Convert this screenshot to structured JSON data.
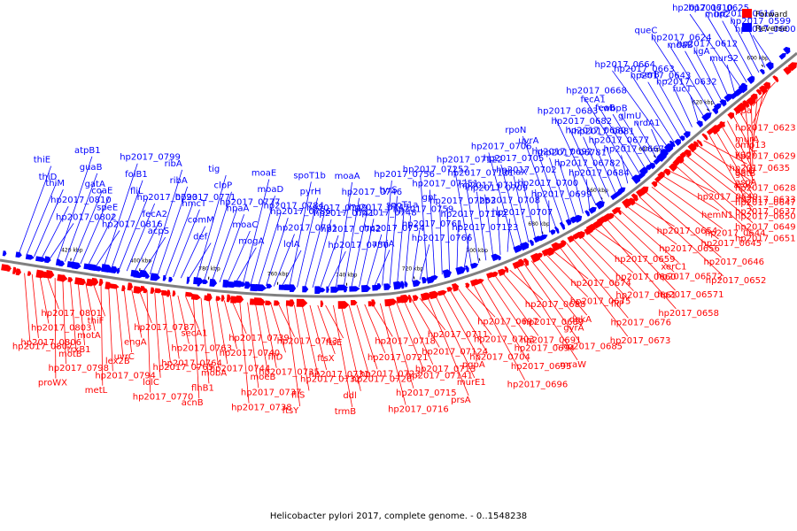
{
  "caption": "Helicobacter pylori 2017, complete genome. - 0..1548238",
  "legend": [
    {
      "label": "Forward",
      "color": "#ff0000"
    },
    {
      "label": "Reverse",
      "color": "#0000ff"
    }
  ],
  "colors": {
    "forward": "#ff0000",
    "reverse": "#0000ff",
    "backbone": "#808080"
  },
  "ticks": [
    "420 kbp",
    "400 kbp",
    "780 kbp",
    "760 kbp",
    "740 kbp",
    "720 kbp",
    "700 kbp",
    "680 kbp",
    "660 kbp",
    "640 kbp",
    "620 kbp",
    "600 kbp"
  ],
  "reverse_labels": [
    "hp2017_0600",
    "hp2017_0599",
    "hp2017_0616",
    "murC",
    "hp2017_0625",
    "hp2017_0610",
    "murS2",
    "ligA",
    "hp2017_0612",
    "mdaB",
    "hp2017_0624",
    "queC",
    "fucT",
    "hp2017_0632",
    "serB",
    "hp2017_0643",
    "hp2017_0663",
    "hp2017_0664",
    "nrdA1",
    "glmU",
    "wbpB",
    "feoB",
    "fecA1",
    "hp2017_0668",
    "hp2017_0667",
    "hp2017_0677",
    "hp2017_0681",
    "hp2017_0680",
    "hp2017_0682",
    "hp2017_0683",
    "hp2017_0684",
    "hp2017_06782",
    "hp2017_06781",
    "hp2017_0692",
    "uvrA",
    "rpoN",
    "hp2017_0699",
    "hp2017_0700",
    "dnaX",
    "hp2017_0702",
    "hp2017_0705",
    "hp2017_0706",
    "hp2017_0707",
    "hp2017_0708",
    "hp2017_0709",
    "hp2017_0710",
    "hp2017_07121",
    "hp2017_07122",
    "hp2017_07123",
    "hp2017_07142",
    "hp2017_07253",
    "gpt",
    "hp2017_07251",
    "hp2017_07252",
    "hp2017_0766",
    "hp2017_0761",
    "hp2017_0759",
    "spoT1a",
    "tyrS",
    "hp2017_0756",
    "amiA",
    "hp2017_0754",
    "hp2017_0748",
    "hp2017_0747",
    "hp2017_0746",
    "moaA",
    "hp2017_0750",
    "hp2017_0742",
    "hp2017_0741",
    "hp2017_0749",
    "pyrH",
    "spoT1b",
    "lolA",
    "hp2017_0791",
    "hp2017_0786",
    "hp2017_0784",
    "moaD",
    "moaE",
    "mogA",
    "moaC",
    "hpaA",
    "hp2017_0777",
    "clpP",
    "tig",
    "def",
    "comM",
    "hmcT",
    "hp2017_0771",
    "ribA",
    "ribA",
    "acpS",
    "fecA2",
    "hp2017_0793",
    "fliL",
    "folB1",
    "hp2017_0799",
    "hp2017_0816",
    "speE",
    "coaE",
    "gatA",
    "guaB",
    "atpB1",
    "hp2017_0802",
    "hp2017_0810",
    "thiM",
    "thiD",
    "thiE"
  ],
  "forward_labels": [
    "ppa",
    "hp2017_0623",
    "omp13",
    "yggT",
    "galU",
    "hp2017_0628",
    "murA",
    "hp2017_0629",
    "gatB",
    "aspA",
    "hp2017_0633",
    "hp2017_0650",
    "hp2017_0635",
    "aroC",
    "hp2017_0647",
    "hp2017_0637",
    "hp2017_0649",
    "hp2017_0651",
    "hp2017_0640",
    "hemN1",
    "hp2017_0644",
    "hp2017_0645",
    "hp2017_0646",
    "hp2017_0652",
    "hp2017_0654",
    "hp2017_0656",
    "xerC1",
    "hp2017_06572",
    "hp2017_06571",
    "hp2017_0658",
    "hp2017_0659",
    "hp2017_0660",
    "hp2017_0661",
    "fliP",
    "hp2017_0676",
    "hp2017_0673",
    "hp2017_0674",
    "hp2017_0675",
    "dgkA",
    "gyrA",
    "hp2017_0685",
    "mraW",
    "hp2017_0688",
    "hp2017_0689",
    "hp2017_0691",
    "hp2017_0694",
    "hp2017_0695",
    "hp2017_0696",
    "hp2017_0697",
    "hp2017_0703",
    "hp2017_0704",
    "pgpA",
    "murE1",
    "prsA",
    "hp2017_0711",
    "hp2017_07124",
    "hp2017_0713",
    "hp2017_07141",
    "hp2017_0715",
    "hp2017_0716",
    "hp2017_0718",
    "hp2017_0721",
    "hp2017_0723",
    "hp2017_0726",
    "ddl",
    "trmB",
    "ftsE",
    "ftsX",
    "hp2017_0731",
    "hp2017_0732",
    "fliS",
    "ftsY",
    "hp2017_0743",
    "fliD",
    "hp2017_0735",
    "moeB",
    "hp2017_0737",
    "hp2017_0738",
    "hp2017_0739",
    "hp2017_0740",
    "hp2017_0744",
    "mobA",
    "flhB1",
    "acnB",
    "secA1",
    "hp2017_0763",
    "hp2017_0764",
    "hp2017_0765",
    "lolC",
    "hp2017_0770",
    "hp2017_0787",
    "engA",
    "uvrC",
    "lex2B",
    "hp2017_0794",
    "metL",
    "thiF",
    "motA",
    "trxB1",
    "motB",
    "hp2017_0798",
    "proWX",
    "hp2017_0801",
    "hp2017_0803",
    "hp2017_0806",
    "hp2017_0807"
  ]
}
